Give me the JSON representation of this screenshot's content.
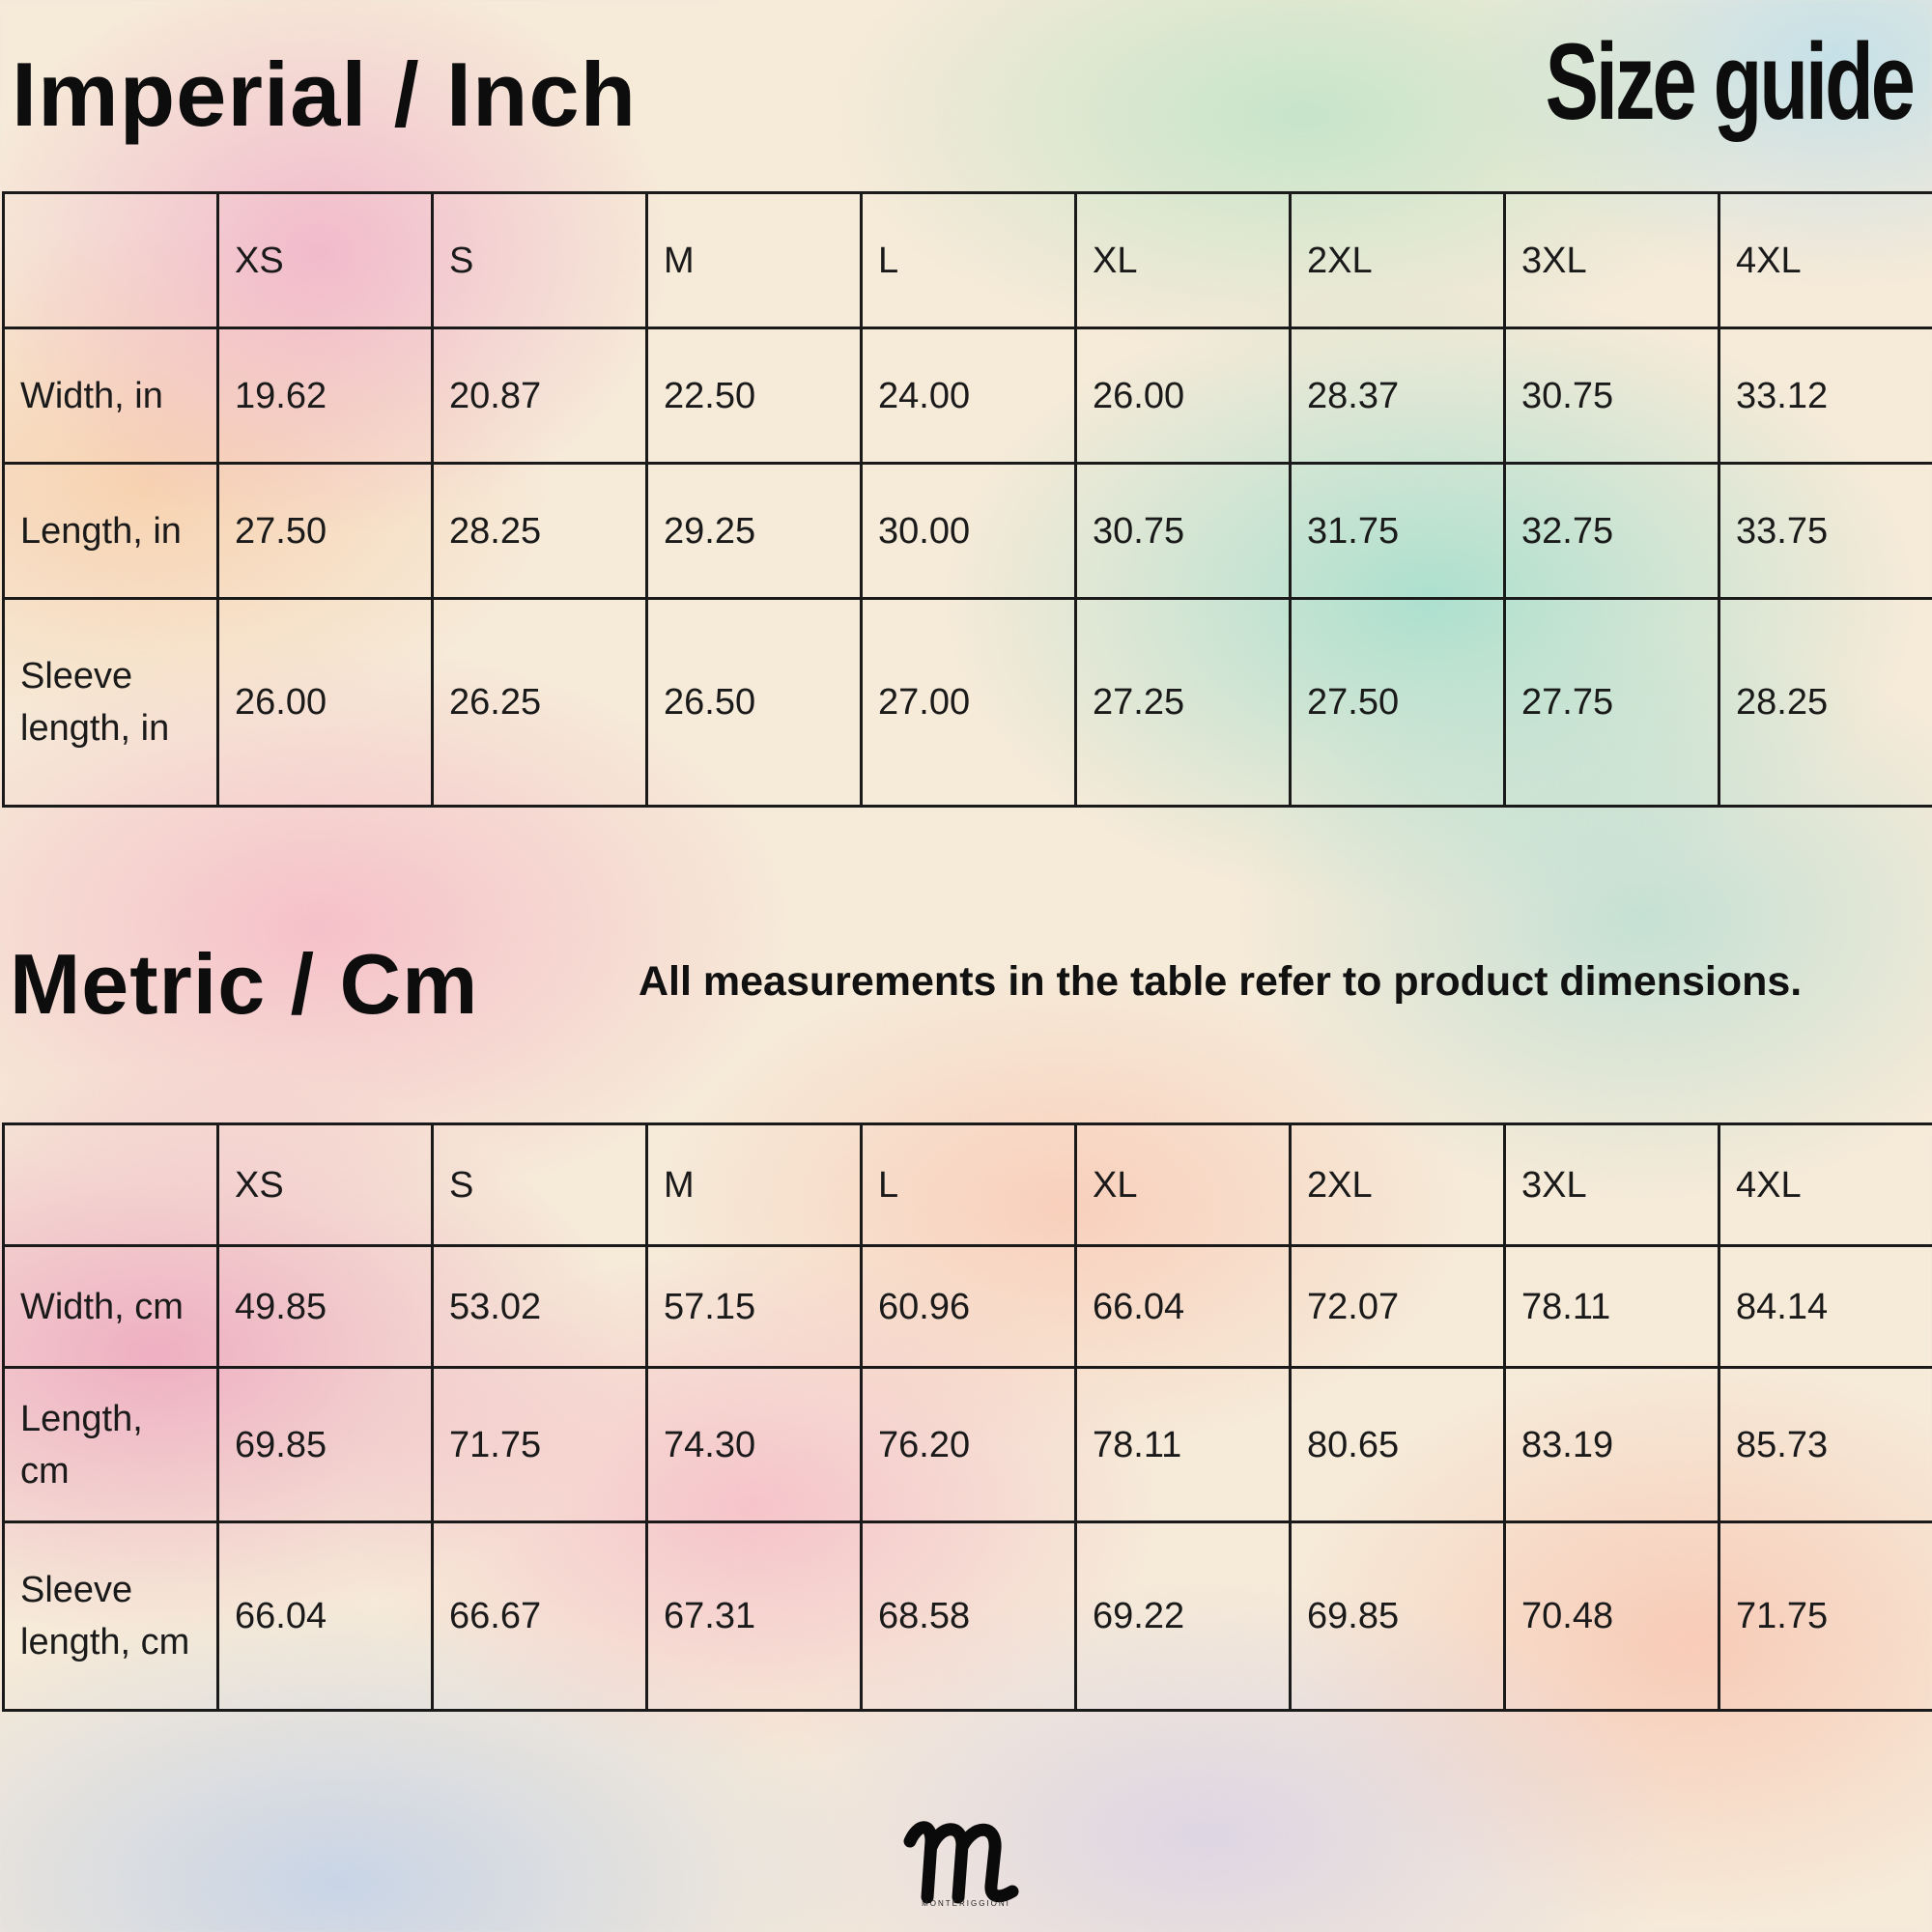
{
  "imperial": {
    "title": "Imperial / Inch",
    "headers": [
      "",
      "XS",
      "S",
      "M",
      "L",
      "XL",
      "2XL",
      "3XL",
      "4XL"
    ],
    "rows": [
      {
        "label": "Width, in",
        "values": [
          "19.62",
          "20.87",
          "22.50",
          "24.00",
          "26.00",
          "28.37",
          "30.75",
          "33.12"
        ]
      },
      {
        "label": "Length, in",
        "values": [
          "27.50",
          "28.25",
          "29.25",
          "30.00",
          "30.75",
          "31.75",
          "32.75",
          "33.75"
        ]
      },
      {
        "label": "Sleeve\nlength, in",
        "values": [
          "26.00",
          "26.25",
          "26.50",
          "27.00",
          "27.25",
          "27.50",
          "27.75",
          "28.25"
        ]
      }
    ]
  },
  "size_guide_title": "Size guide",
  "metric": {
    "title": "Metric / Cm",
    "note": "All measurements in the table refer to product dimensions.",
    "headers": [
      "",
      "XS",
      "S",
      "M",
      "L",
      "XL",
      "2XL",
      "3XL",
      "4XL"
    ],
    "rows": [
      {
        "label": "Width, cm",
        "values": [
          "49.85",
          "53.02",
          "57.15",
          "60.96",
          "66.04",
          "72.07",
          "78.11",
          "84.14"
        ]
      },
      {
        "label": "Length,\ncm",
        "values": [
          "69.85",
          "71.75",
          "74.30",
          "76.20",
          "78.11",
          "80.65",
          "83.19",
          "85.73"
        ]
      },
      {
        "label": "Sleeve\nlength, cm",
        "values": [
          "66.04",
          "66.67",
          "67.31",
          "68.58",
          "69.22",
          "69.85",
          "70.48",
          "71.75"
        ]
      }
    ]
  },
  "logo": {
    "name": "MONTERIGGIONI",
    "icon": "brand-m-logo"
  }
}
